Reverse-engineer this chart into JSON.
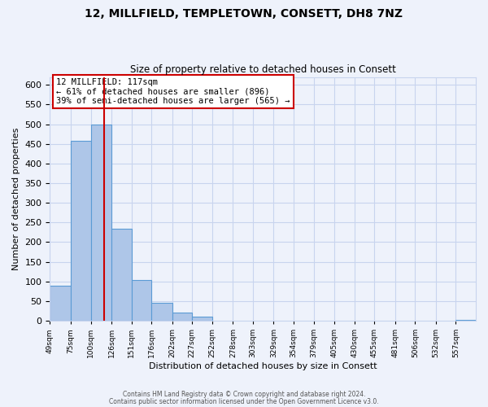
{
  "title": "12, MILLFIELD, TEMPLETOWN, CONSETT, DH8 7NZ",
  "subtitle": "Size of property relative to detached houses in Consett",
  "xlabel": "Distribution of detached houses by size in Consett",
  "ylabel": "Number of detached properties",
  "bin_labels": [
    "49sqm",
    "75sqm",
    "100sqm",
    "126sqm",
    "151sqm",
    "176sqm",
    "202sqm",
    "227sqm",
    "252sqm",
    "278sqm",
    "303sqm",
    "329sqm",
    "354sqm",
    "379sqm",
    "405sqm",
    "430sqm",
    "455sqm",
    "481sqm",
    "506sqm",
    "532sqm",
    "557sqm"
  ],
  "bar_values": [
    90,
    457,
    500,
    235,
    104,
    46,
    20,
    10,
    0,
    0,
    0,
    0,
    0,
    0,
    0,
    0,
    0,
    0,
    0,
    0,
    3
  ],
  "bar_color": "#aec6e8",
  "bar_edgecolor": "#5b9bd5",
  "property_line_x": 117,
  "ylim": [
    0,
    620
  ],
  "yticks": [
    0,
    50,
    100,
    150,
    200,
    250,
    300,
    350,
    400,
    450,
    500,
    550,
    600
  ],
  "annotation_title": "12 MILLFIELD: 117sqm",
  "annotation_line1": "← 61% of detached houses are smaller (896)",
  "annotation_line2": "39% of semi-detached houses are larger (565) →",
  "footer1": "Contains HM Land Registry data © Crown copyright and database right 2024.",
  "footer2": "Contains public sector information licensed under the Open Government Licence v3.0.",
  "background_color": "#eef2fb",
  "grid_color": "#c8d4ee",
  "annotation_box_color": "#ffffff",
  "annotation_box_edgecolor": "#cc0000",
  "vline_color": "#cc0000",
  "bin_edges": [
    49,
    75,
    100,
    126,
    151,
    176,
    202,
    227,
    252,
    278,
    303,
    329,
    354,
    379,
    405,
    430,
    455,
    481,
    506,
    532,
    557,
    582
  ]
}
